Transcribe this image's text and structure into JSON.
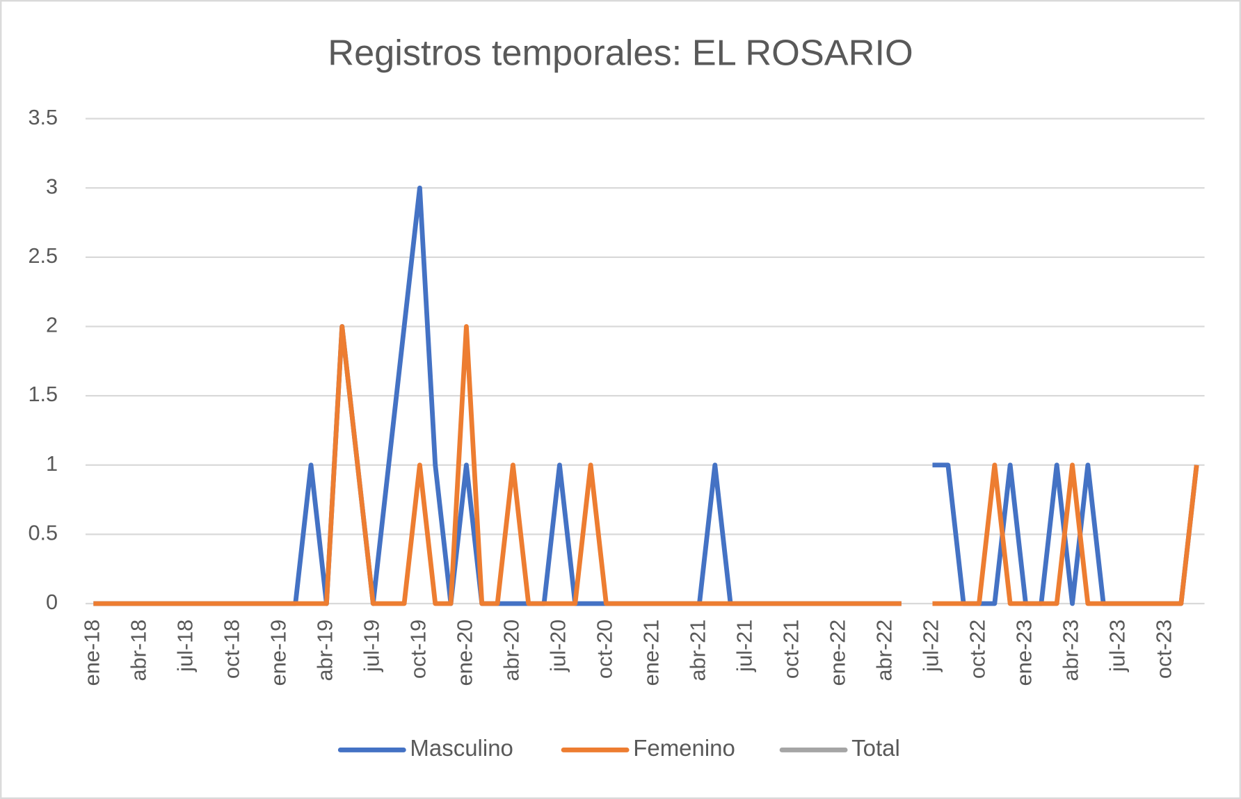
{
  "chart_data": {
    "type": "line",
    "title": "Registros temporales: EL ROSARIO",
    "categories": [
      "ene-18",
      null,
      null,
      "abr-18",
      null,
      null,
      "jul-18",
      null,
      null,
      "oct-18",
      null,
      null,
      "ene-19",
      null,
      null,
      "abr-19",
      null,
      null,
      "jul-19",
      null,
      null,
      "oct-19",
      null,
      null,
      "ene-20",
      null,
      null,
      "abr-20",
      null,
      null,
      "jul-20",
      null,
      null,
      "oct-20",
      null,
      null,
      "ene-21",
      null,
      null,
      "abr-21",
      null,
      null,
      "jul-21",
      null,
      null,
      "oct-21",
      null,
      null,
      "ene-22",
      null,
      null,
      "abr-22",
      null,
      null,
      "jul-22",
      null,
      null,
      "oct-22",
      null,
      null,
      "ene-23",
      null,
      null,
      "abr-23",
      null,
      null,
      "jul-23",
      null,
      null,
      "oct-23",
      null,
      null
    ],
    "series": [
      {
        "name": "Masculino",
        "color": "#4472c4",
        "values": [
          0,
          0,
          0,
          0,
          0,
          0,
          0,
          0,
          0,
          0,
          0,
          0,
          0,
          0,
          1,
          0,
          2,
          1,
          0,
          1,
          2,
          3,
          1,
          0,
          1,
          0,
          0,
          0,
          0,
          0,
          1,
          0,
          0,
          0,
          0,
          0,
          0,
          0,
          0,
          0,
          1,
          0,
          0,
          0,
          0,
          0,
          0,
          0,
          0,
          0,
          0,
          0,
          0,
          null,
          1,
          1,
          0,
          0,
          0,
          1,
          0,
          0,
          1,
          0,
          1,
          0,
          0,
          0,
          0,
          0,
          0,
          1
        ]
      },
      {
        "name": "Femenino",
        "color": "#ed7d31",
        "values": [
          0,
          0,
          0,
          0,
          0,
          0,
          0,
          0,
          0,
          0,
          0,
          0,
          0,
          0,
          0,
          0,
          2,
          1,
          0,
          0,
          0,
          1,
          0,
          0,
          2,
          0,
          0,
          1,
          0,
          0,
          0,
          0,
          1,
          0,
          0,
          0,
          0,
          0,
          0,
          0,
          0,
          0,
          0,
          0,
          0,
          0,
          0,
          0,
          0,
          0,
          0,
          0,
          0,
          null,
          0,
          0,
          0,
          0,
          1,
          0,
          0,
          0,
          0,
          1,
          0,
          0,
          0,
          0,
          0,
          0,
          0,
          1
        ]
      },
      {
        "name": "Total",
        "color": "#a5a5a5",
        "values": [
          null,
          null,
          null,
          null,
          null,
          null,
          null,
          null,
          null,
          null,
          null,
          null,
          null,
          null,
          null,
          null,
          null,
          null,
          null,
          null,
          null,
          null,
          null,
          null,
          null,
          null,
          null,
          null,
          null,
          null,
          null,
          null,
          null,
          null,
          null,
          null,
          null,
          null,
          null,
          null,
          null,
          null,
          null,
          null,
          null,
          null,
          null,
          null,
          null,
          null,
          null,
          null,
          null,
          null,
          null,
          null,
          null,
          null,
          null,
          null,
          null,
          null,
          null,
          null,
          null,
          null,
          null,
          null,
          null,
          null,
          null,
          null
        ]
      }
    ],
    "ylim": [
      0,
      3.5
    ],
    "yticks": [
      0,
      0.5,
      1,
      1.5,
      2,
      2.5,
      3,
      3.5
    ],
    "grid": true,
    "legend": "bottom"
  }
}
